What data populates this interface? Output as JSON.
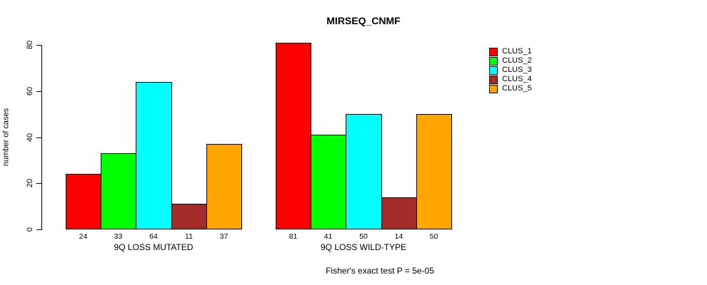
{
  "chart_data": {
    "type": "bar",
    "title": "MIRSEQ_CNMF",
    "ylabel": "number of cases",
    "xlabel": "",
    "ylim": [
      0,
      80
    ],
    "yticks": [
      0,
      20,
      40,
      60,
      80
    ],
    "grid": false,
    "legend_position": "right",
    "bar_value_labels_shown": true,
    "groups": [
      "9Q LOSS MUTATED",
      "9Q LOSS WILD-TYPE"
    ],
    "series": [
      {
        "name": "CLUS_1",
        "color": "#FF0000",
        "values": [
          24,
          81
        ]
      },
      {
        "name": "CLUS_2",
        "color": "#00FF00",
        "values": [
          33,
          41
        ]
      },
      {
        "name": "CLUS_3",
        "color": "#00FFFF",
        "values": [
          64,
          50
        ]
      },
      {
        "name": "CLUS_4",
        "color": "#A52A2A",
        "values": [
          11,
          14
        ]
      },
      {
        "name": "CLUS_5",
        "color": "#FFA500",
        "values": [
          37,
          50
        ]
      }
    ],
    "annotation": "Fisher's exact test P = 5e-05",
    "colors": {
      "axis": "#000000",
      "text": "#000000",
      "background": "#FFFFFF"
    }
  }
}
